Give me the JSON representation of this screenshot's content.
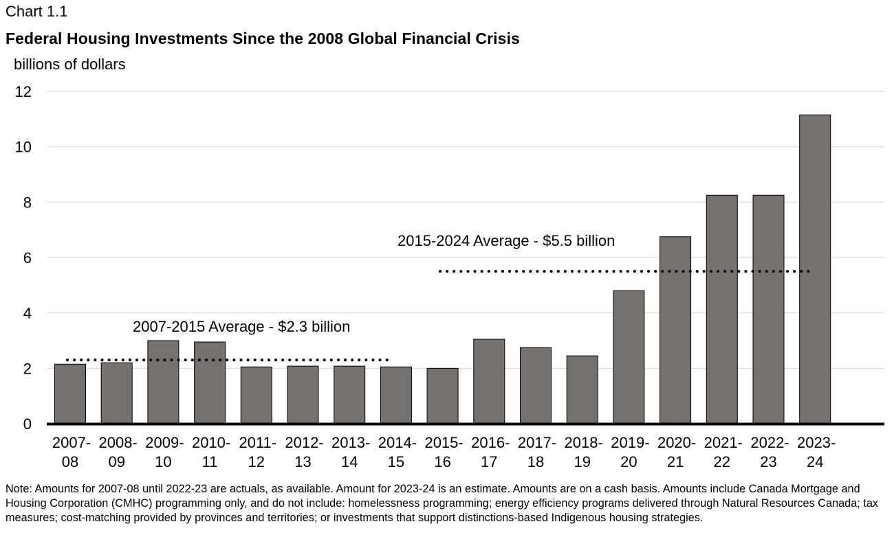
{
  "chart_number": "Chart 1.1",
  "note": "Note: Amounts for 2007-08 until 2022-23 are actuals, as available. Amount for 2023-24 is an estimate. Amounts are on a cash basis. Amounts include Canada Mortgage and Housing Corporation (CMHC) programming only, and do not include: homelessness programming; energy efficiency programs delivered through Natural Resources Canada; tax measures; cost-matching provided by provinces and territories; or investments that support distinctions-based Indigenous housing strategies.",
  "colors": {
    "bar": "#767171",
    "bar_border": "#000000",
    "grid": "#d9d9d9",
    "axis": "#000000",
    "average_line": "#000000"
  },
  "chart_data": {
    "type": "bar",
    "title": "Federal Housing Investments Since the 2008 Global Financial Crisis",
    "ylabel": "billions of dollars",
    "xlabel": "",
    "ylim": [
      0,
      12
    ],
    "yticks": [
      0,
      2,
      4,
      6,
      8,
      10,
      12
    ],
    "grid": true,
    "categories": [
      [
        "2007-",
        "08"
      ],
      [
        "2008-",
        "09"
      ],
      [
        "2009-",
        "10"
      ],
      [
        "2010-",
        "11"
      ],
      [
        "2011-",
        "12"
      ],
      [
        "2012-",
        "13"
      ],
      [
        "2013-",
        "14"
      ],
      [
        "2014-",
        "15"
      ],
      [
        "2015-",
        "16"
      ],
      [
        "2016-",
        "17"
      ],
      [
        "2017-",
        "18"
      ],
      [
        "2018-",
        "19"
      ],
      [
        "2019-",
        "20"
      ],
      [
        "2020-",
        "21"
      ],
      [
        "2021-",
        "22"
      ],
      [
        "2022-",
        "23"
      ],
      [
        "2023-",
        "24"
      ]
    ],
    "values": [
      2.15,
      2.2,
      3.0,
      2.95,
      2.05,
      2.08,
      2.08,
      2.05,
      2.0,
      3.05,
      2.75,
      2.45,
      4.8,
      6.75,
      8.25,
      8.25,
      11.15
    ],
    "averages": [
      {
        "label": "2007-2015 Average - $2.3 billion",
        "value": 2.3,
        "from_index": 0,
        "to_index": 7
      },
      {
        "label": "2015-2024 Average - $5.5 billion",
        "value": 5.5,
        "from_index": 8,
        "to_index": 16
      }
    ]
  }
}
